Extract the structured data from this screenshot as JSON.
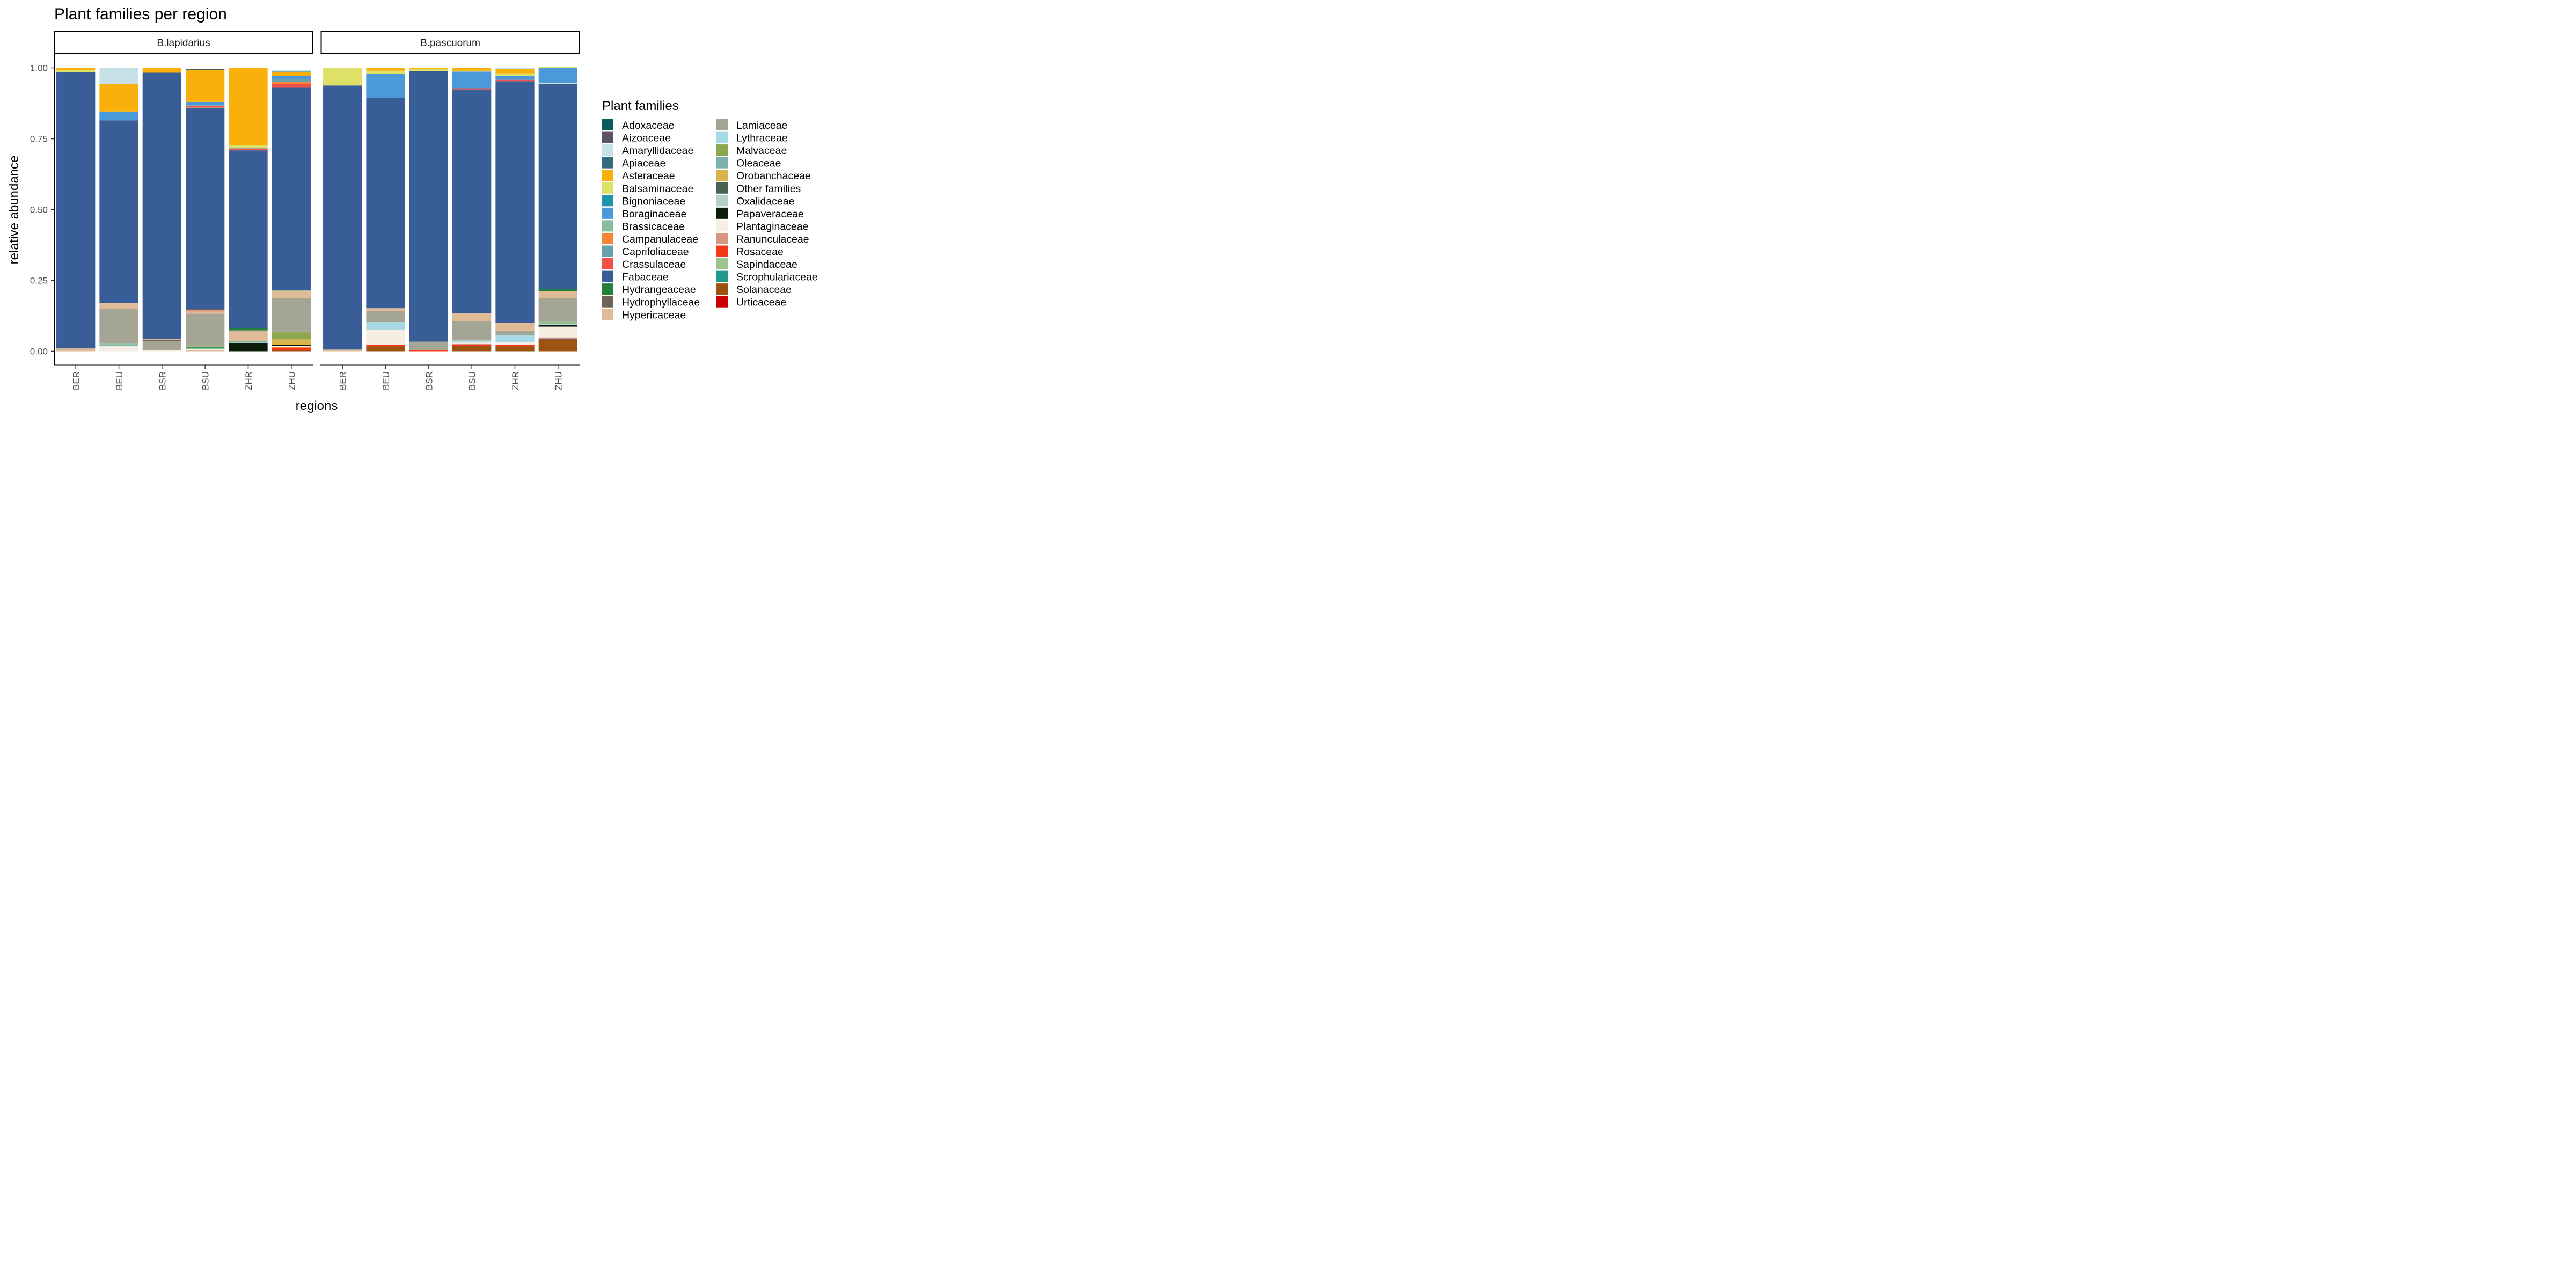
{
  "chart_data": {
    "type": "bar",
    "stacked": true,
    "title": "Plant families per region",
    "xlabel": "regions",
    "ylabel": "relative abundance",
    "ylim": [
      0,
      1.05
    ],
    "yticks": [
      0,
      0.25,
      0.5,
      0.75,
      1
    ],
    "ytick_labels": [
      "0.00",
      "0.25",
      "0.50",
      "0.75",
      "1.00"
    ],
    "categories": [
      "BER",
      "BEU",
      "BSR",
      "BSU",
      "ZHR",
      "ZHU"
    ],
    "legend_title": "Plant families",
    "legend_position": "right",
    "grid": false,
    "families": [
      {
        "name": "Adoxaceae",
        "color": "#0b5a5a"
      },
      {
        "name": "Aizoaceae",
        "color": "#5c5363"
      },
      {
        "name": "Amaryllidaceae",
        "color": "#c7e1e8"
      },
      {
        "name": "Apiaceae",
        "color": "#336a7c"
      },
      {
        "name": "Asteraceae",
        "color": "#f9b00a"
      },
      {
        "name": "Balsaminaceae",
        "color": "#dfe068"
      },
      {
        "name": "Bignoniaceae",
        "color": "#1d94a8"
      },
      {
        "name": "Boraginaceae",
        "color": "#4a99d8"
      },
      {
        "name": "Brassicaceae",
        "color": "#86bf9e"
      },
      {
        "name": "Campanulaceae",
        "color": "#f98435"
      },
      {
        "name": "Caprifoliaceae",
        "color": "#67a1aa"
      },
      {
        "name": "Crassulaceae",
        "color": "#f24f4a"
      },
      {
        "name": "Fabaceae",
        "color": "#385d97"
      },
      {
        "name": "Hydrangeaceae",
        "color": "#227f38"
      },
      {
        "name": "Hydrophyllaceae",
        "color": "#6f625b"
      },
      {
        "name": "Hypericaceae",
        "color": "#dfbb97"
      },
      {
        "name": "Lamiaceae",
        "color": "#a5a596"
      },
      {
        "name": "Lythraceae",
        "color": "#a5d9e6"
      },
      {
        "name": "Malvaceae",
        "color": "#8ba64c"
      },
      {
        "name": "Oleaceae",
        "color": "#7bb2ab"
      },
      {
        "name": "Orobanchaceae",
        "color": "#d8b449"
      },
      {
        "name": "Other families",
        "color": "#4b6253"
      },
      {
        "name": "Oxalidaceae",
        "color": "#b5d1c4"
      },
      {
        "name": "Papaveraceae",
        "color": "#0c1b0a"
      },
      {
        "name": "Plantaginaceae",
        "color": "#f4eee3"
      },
      {
        "name": "Ranunculaceae",
        "color": "#d69682"
      },
      {
        "name": "Rosaceae",
        "color": "#f53817"
      },
      {
        "name": "Sapindaceae",
        "color": "#a0c28f"
      },
      {
        "name": "Scrophulariaceae",
        "color": "#20998c"
      },
      {
        "name": "Solanaceae",
        "color": "#9e5210"
      },
      {
        "name": "Urticaceae",
        "color": "#cb0000"
      }
    ],
    "panels": [
      {
        "name": "B.lapidarius",
        "bars": {
          "BER": [
            [
              "Hypericaceae",
              0.01
            ],
            [
              "Fabaceae",
              0.975
            ],
            [
              "Balsaminaceae",
              0.008
            ],
            [
              "Asteraceae",
              0.007
            ]
          ],
          "BEU": [
            [
              "Plantaginaceae",
              0.02
            ],
            [
              "Oleaceae",
              0.004
            ],
            [
              "Brassicaceae",
              0.003
            ],
            [
              "Lamiaceae",
              0.122
            ],
            [
              "Hypericaceae",
              0.021
            ],
            [
              "Fabaceae",
              0.645
            ],
            [
              "Boraginaceae",
              0.031
            ],
            [
              "Asteraceae",
              0.098
            ],
            [
              "Amaryllidaceae",
              0.056
            ]
          ],
          "BSR": [
            [
              "Plantaginaceae",
              0.003
            ],
            [
              "Lamiaceae",
              0.033
            ],
            [
              "Hydrophyllaceae",
              0.003
            ],
            [
              "Hypericaceae",
              0.004
            ],
            [
              "Fabaceae",
              0.94
            ],
            [
              "Asteraceae",
              0.017
            ]
          ],
          "BSU": [
            [
              "Hypericaceae",
              0.004
            ],
            [
              "Plantaginaceae",
              0.004
            ],
            [
              "Brassicaceae",
              0.003
            ],
            [
              "Hydrangeaceae",
              0.003
            ],
            [
              "Sapindaceae",
              0.004
            ],
            [
              "Lamiaceae",
              0.115
            ],
            [
              "Hypericaceae",
              0.007
            ],
            [
              "Ranunculaceae",
              0.006
            ],
            [
              "Hydrophyllaceae",
              0.004
            ],
            [
              "Fabaceae",
              0.708
            ],
            [
              "Ranunculaceae",
              0.003
            ],
            [
              "Crassulaceae",
              0.005
            ],
            [
              "Oleaceae",
              0.002
            ],
            [
              "Boraginaceae",
              0.012
            ],
            [
              "Asteraceae",
              0.112
            ],
            [
              "Other families",
              0.004
            ]
          ],
          "ZHR": [
            [
              "Papaveraceae",
              0.028
            ],
            [
              "Plantaginaceae",
              0.002
            ],
            [
              "Oleaceae",
              0.005
            ],
            [
              "Hypericaceae",
              0.035
            ],
            [
              "Lamiaceae",
              0.004
            ],
            [
              "Hydrangeaceae",
              0.008
            ],
            [
              "Fabaceae",
              0.627
            ],
            [
              "Crassulaceae",
              0.004
            ],
            [
              "Lamiaceae",
              0.004
            ],
            [
              "Balsaminaceae",
              0.009
            ],
            [
              "Asteraceae",
              0.274
            ]
          ],
          "ZHU": [
            [
              "Solanaceae",
              0.003
            ],
            [
              "Rosaceae",
              0.009
            ],
            [
              "Campanulaceae",
              0.003
            ],
            [
              "Plantaginaceae",
              0.003
            ],
            [
              "Papaveraceae",
              0.004
            ],
            [
              "Orobanchaceae",
              0.02
            ],
            [
              "Malvaceae",
              0.025
            ],
            [
              "Lamiaceae",
              0.12
            ],
            [
              "Hypericaceae",
              0.025
            ],
            [
              "Sapindaceae",
              0.003
            ],
            [
              "Fabaceae",
              0.715
            ],
            [
              "Crassulaceae",
              0.013
            ],
            [
              "Campanulaceae",
              0.008
            ],
            [
              "Caprifoliaceae",
              0.01
            ],
            [
              "Boraginaceae",
              0.011
            ],
            [
              "Asteraceae",
              0.012
            ],
            [
              "Oleaceae",
              0.004
            ],
            [
              "Scrophulariaceae",
              0.002
            ]
          ]
        }
      },
      {
        "name": "B.pascuorum",
        "bars": {
          "BER": [
            [
              "Hypericaceae",
              0.006
            ],
            [
              "Fabaceae",
              0.932
            ],
            [
              "Balsaminaceae",
              0.062
            ]
          ],
          "BEU": [
            [
              "Solanaceae",
              0.017
            ],
            [
              "Rosaceae",
              0.005
            ],
            [
              "Plantaginaceae",
              0.053
            ],
            [
              "Lythraceae",
              0.028
            ],
            [
              "Lamiaceae",
              0.039
            ],
            [
              "Hypericaceae",
              0.01
            ],
            [
              "Fabaceae",
              0.742
            ],
            [
              "Boraginaceae",
              0.085
            ],
            [
              "Balsaminaceae",
              0.011
            ],
            [
              "Asteraceae",
              0.01
            ]
          ],
          "BSR": [
            [
              "Rosaceae",
              0.005
            ],
            [
              "Lamiaceae",
              0.029
            ],
            [
              "Fabaceae",
              0.955
            ],
            [
              "Balsaminaceae",
              0.006
            ],
            [
              "Asteraceae",
              0.005
            ]
          ],
          "BSU": [
            [
              "Solanaceae",
              0.018
            ],
            [
              "Rosaceae",
              0.004
            ],
            [
              "Ranunculaceae",
              0.004
            ],
            [
              "Plantaginaceae",
              0.005
            ],
            [
              "Lythraceae",
              0.004
            ],
            [
              "Oxalidaceae",
              0.004
            ],
            [
              "Lamiaceae",
              0.068
            ],
            [
              "Hypericaceae",
              0.028
            ],
            [
              "Fabaceae",
              0.789
            ],
            [
              "Crassulaceae",
              0.004
            ],
            [
              "Boraginaceae",
              0.059
            ],
            [
              "Balsaminaceae",
              0.003
            ],
            [
              "Asteraceae",
              0.01
            ]
          ],
          "ZHR": [
            [
              "Solanaceae",
              0.017
            ],
            [
              "Rosaceae",
              0.005
            ],
            [
              "Plantaginaceae",
              0.01
            ],
            [
              "Lythraceae",
              0.024
            ],
            [
              "Lamiaceae",
              0.015
            ],
            [
              "Hypericaceae",
              0.03
            ],
            [
              "Fabaceae",
              0.852
            ],
            [
              "Crassulaceae",
              0.005
            ],
            [
              "Boraginaceae",
              0.013
            ],
            [
              "Balsaminaceae",
              0.01
            ],
            [
              "Asteraceae",
              0.015
            ],
            [
              "Amaryllidaceae",
              0.004
            ]
          ],
          "ZHU": [
            [
              "Solanaceae",
              0.04
            ],
            [
              "Hydrophyllaceae",
              0.004
            ],
            [
              "Ranunculaceae",
              0.005
            ],
            [
              "Plantaginaceae",
              0.038
            ],
            [
              "Papaveraceae",
              0.005
            ],
            [
              "Lythraceae",
              0.006
            ],
            [
              "Malvaceae",
              0.004
            ],
            [
              "Brassicaceae",
              0.002
            ],
            [
              "Lamiaceae",
              0.084
            ],
            [
              "Hypericaceae",
              0.025
            ],
            [
              "Hydrangeaceae",
              0.007
            ],
            [
              "Fabaceae",
              0.723
            ],
            [
              "Amaryllidaceae",
              0.003
            ],
            [
              "Boraginaceae",
              0.054
            ],
            [
              "Balsaminaceae",
              0.003
            ]
          ]
        }
      }
    ]
  }
}
